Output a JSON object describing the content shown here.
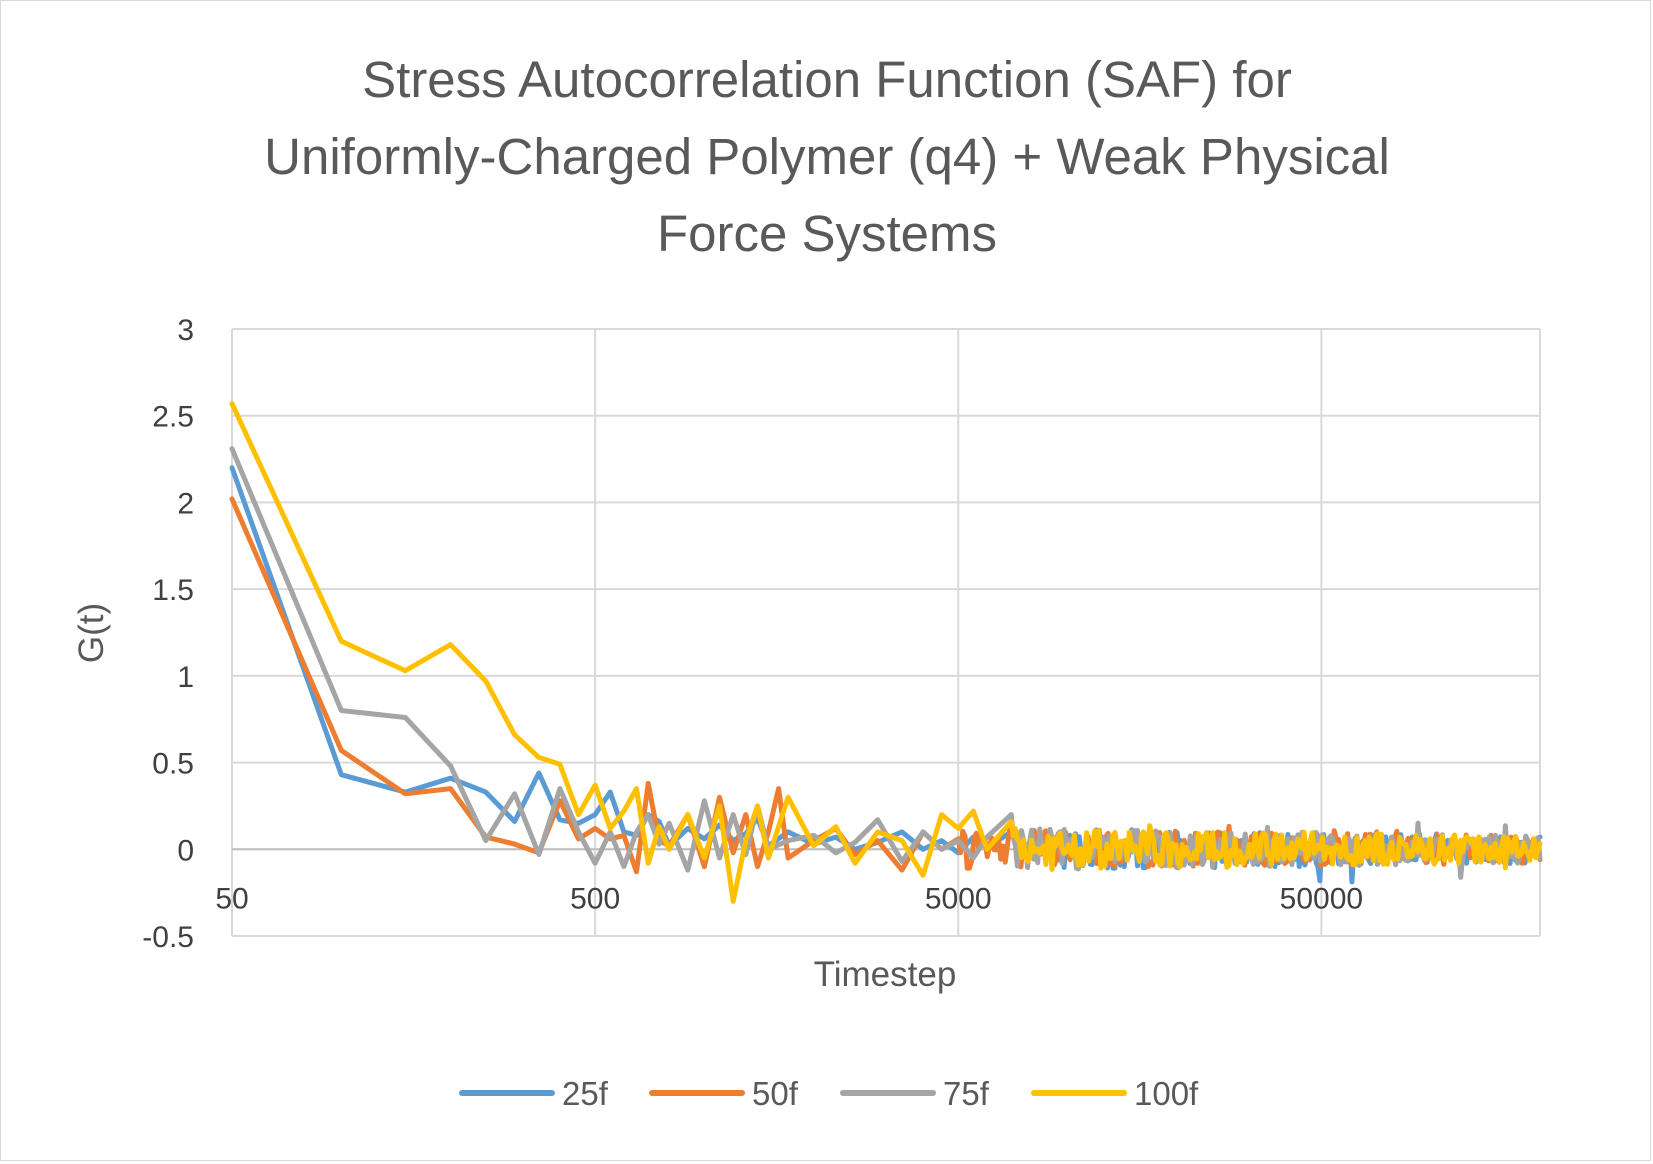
{
  "chart_data": {
    "type": "line",
    "title_lines": [
      "Stress Autocorrelation Function (SAF) for",
      "Uniformly-Charged Polymer (q4) + Weak Physical",
      "Force Systems"
    ],
    "xlabel": "Timestep",
    "ylabel": "G(t)",
    "x_scale": "log",
    "xlim": [
      50,
      200000
    ],
    "ylim": [
      -0.5,
      3
    ],
    "x_ticks": [
      50,
      500,
      5000,
      50000
    ],
    "x_tick_labels": [
      "50",
      "500",
      "5000",
      "50000"
    ],
    "y_ticks": [
      3,
      2.5,
      2,
      1.5,
      1,
      0.5,
      0,
      -0.5
    ],
    "y_tick_labels": [
      "3",
      "2.5",
      "2",
      "1.5",
      "1",
      "0.5",
      "0",
      "-0.5"
    ],
    "grid": true,
    "legend_position": "bottom",
    "series": [
      {
        "name": "25f",
        "color": "#5b9bd5",
        "points": [
          [
            50,
            2.2
          ],
          [
            100,
            0.43
          ],
          [
            150,
            0.33
          ],
          [
            200,
            0.41
          ],
          [
            250,
            0.33
          ],
          [
            300,
            0.16
          ],
          [
            350,
            0.44
          ],
          [
            400,
            0.17
          ],
          [
            450,
            0.15
          ],
          [
            500,
            0.2
          ],
          [
            550,
            0.33
          ],
          [
            600,
            0.1
          ],
          [
            650,
            0.08
          ],
          [
            700,
            0.2
          ],
          [
            750,
            0.16
          ],
          [
            800,
            0.02
          ],
          [
            900,
            0.12
          ],
          [
            1000,
            0.06
          ],
          [
            1100,
            0.14
          ],
          [
            1200,
            0.05
          ],
          [
            1300,
            0.09
          ],
          [
            1400,
            0.18
          ],
          [
            1500,
            0.02
          ],
          [
            1700,
            0.1
          ],
          [
            2000,
            0.03
          ],
          [
            2300,
            0.07
          ],
          [
            2600,
            0.0
          ],
          [
            3000,
            0.04
          ],
          [
            3500,
            0.1
          ],
          [
            4000,
            0.0
          ],
          [
            4500,
            0.05
          ],
          [
            5000,
            -0.02
          ],
          [
            5500,
            0.07
          ],
          [
            6000,
            0.01
          ],
          [
            7000,
            0.1
          ],
          [
            8000,
            -0.05
          ],
          [
            9000,
            0.08
          ]
        ]
      },
      {
        "name": "50f",
        "color": "#ed7d31",
        "points": [
          [
            50,
            2.02
          ],
          [
            100,
            0.57
          ],
          [
            150,
            0.32
          ],
          [
            200,
            0.35
          ],
          [
            250,
            0.07
          ],
          [
            300,
            0.03
          ],
          [
            350,
            -0.02
          ],
          [
            400,
            0.28
          ],
          [
            450,
            0.06
          ],
          [
            500,
            0.12
          ],
          [
            550,
            0.06
          ],
          [
            600,
            0.08
          ],
          [
            650,
            -0.13
          ],
          [
            700,
            0.38
          ],
          [
            750,
            0.05
          ],
          [
            800,
            0.02
          ],
          [
            900,
            0.2
          ],
          [
            1000,
            -0.1
          ],
          [
            1100,
            0.3
          ],
          [
            1200,
            -0.02
          ],
          [
            1300,
            0.2
          ],
          [
            1400,
            -0.1
          ],
          [
            1500,
            0.1
          ],
          [
            1600,
            0.35
          ],
          [
            1700,
            -0.05
          ],
          [
            2000,
            0.05
          ],
          [
            2300,
            0.12
          ],
          [
            2600,
            -0.03
          ],
          [
            3000,
            0.05
          ],
          [
            3500,
            -0.12
          ],
          [
            4000,
            0.1
          ],
          [
            4500,
            0.0
          ],
          [
            5000,
            0.06
          ]
        ]
      },
      {
        "name": "75f",
        "color": "#a5a5a5",
        "points": [
          [
            50,
            2.31
          ],
          [
            100,
            0.8
          ],
          [
            150,
            0.76
          ],
          [
            200,
            0.48
          ],
          [
            250,
            0.05
          ],
          [
            300,
            0.32
          ],
          [
            350,
            -0.03
          ],
          [
            400,
            0.35
          ],
          [
            450,
            0.1
          ],
          [
            500,
            -0.08
          ],
          [
            550,
            0.1
          ],
          [
            600,
            -0.1
          ],
          [
            650,
            0.1
          ],
          [
            700,
            0.2
          ],
          [
            750,
            0.03
          ],
          [
            800,
            0.15
          ],
          [
            900,
            -0.12
          ],
          [
            1000,
            0.28
          ],
          [
            1100,
            -0.05
          ],
          [
            1200,
            0.2
          ],
          [
            1300,
            -0.03
          ],
          [
            1400,
            0.25
          ],
          [
            1500,
            0.0
          ],
          [
            1700,
            0.05
          ],
          [
            2000,
            0.08
          ],
          [
            2300,
            -0.02
          ],
          [
            2600,
            0.04
          ],
          [
            3000,
            0.17
          ],
          [
            3500,
            -0.07
          ],
          [
            4000,
            0.1
          ],
          [
            4500,
            0.0
          ],
          [
            5000,
            0.05
          ],
          [
            5500,
            -0.05
          ],
          [
            6000,
            0.07
          ],
          [
            7000,
            0.2
          ]
        ]
      },
      {
        "name": "100f",
        "color": "#ffc000",
        "points": [
          [
            50,
            2.57
          ],
          [
            100,
            1.2
          ],
          [
            150,
            1.03
          ],
          [
            200,
            1.18
          ],
          [
            250,
            0.97
          ],
          [
            300,
            0.66
          ],
          [
            350,
            0.53
          ],
          [
            400,
            0.49
          ],
          [
            450,
            0.2
          ],
          [
            500,
            0.37
          ],
          [
            550,
            0.12
          ],
          [
            600,
            0.22
          ],
          [
            650,
            0.35
          ],
          [
            700,
            -0.08
          ],
          [
            750,
            0.13
          ],
          [
            800,
            0.0
          ],
          [
            900,
            0.2
          ],
          [
            1000,
            -0.05
          ],
          [
            1100,
            0.25
          ],
          [
            1200,
            -0.3
          ],
          [
            1300,
            0.05
          ],
          [
            1400,
            0.25
          ],
          [
            1500,
            -0.05
          ],
          [
            1700,
            0.3
          ],
          [
            2000,
            0.02
          ],
          [
            2300,
            0.13
          ],
          [
            2600,
            -0.08
          ],
          [
            3000,
            0.1
          ],
          [
            3500,
            0.05
          ],
          [
            4000,
            -0.15
          ],
          [
            4500,
            0.2
          ],
          [
            5000,
            0.12
          ],
          [
            5500,
            0.22
          ],
          [
            6000,
            0.0
          ],
          [
            7000,
            0.16
          ]
        ]
      }
    ]
  }
}
